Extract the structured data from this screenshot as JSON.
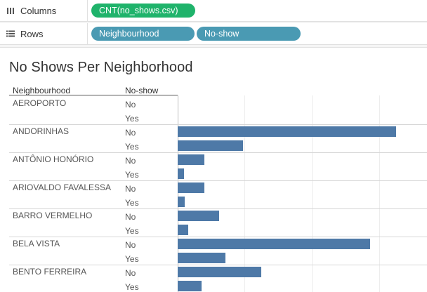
{
  "shelves": {
    "columns": {
      "label": "Columns",
      "icon": "columns-icon",
      "pills": [
        "CNT(no_shows.csv)"
      ]
    },
    "rows": {
      "label": "Rows",
      "icon": "rows-icon",
      "pills": [
        "Neighbourhood",
        "No-show"
      ]
    }
  },
  "colors": {
    "bar": "#4e79a7",
    "pill_measure": "#1fb36b",
    "pill_dimension": "#4a9ab3"
  },
  "sheet": {
    "title": "No Shows Per Neighborhood",
    "headers": {
      "neighbourhood": "Neighbourhood",
      "noshow": "No-show"
    }
  },
  "chart_data": {
    "type": "bar",
    "orientation": "horizontal",
    "title": "No Shows Per Neighborhood",
    "measure": "CNT(no_shows.csv)",
    "xlim": [
      0,
      3500
    ],
    "rows": [
      {
        "neighbourhood": "AEROPORTO",
        "groups": [
          {
            "noshow": "No",
            "value": 0
          },
          {
            "noshow": "Yes",
            "value": 0
          }
        ]
      },
      {
        "neighbourhood": "ANDORINHAS",
        "groups": [
          {
            "noshow": "No",
            "value": 3240
          },
          {
            "noshow": "Yes",
            "value": 970
          }
        ]
      },
      {
        "neighbourhood": "ANTÔNIO HONÓRIO",
        "groups": [
          {
            "noshow": "No",
            "value": 400
          },
          {
            "noshow": "Yes",
            "value": 90
          }
        ]
      },
      {
        "neighbourhood": "ARIOVALDO FAVALESSA",
        "groups": [
          {
            "noshow": "No",
            "value": 400
          },
          {
            "noshow": "Yes",
            "value": 100
          }
        ]
      },
      {
        "neighbourhood": "BARRO VERMELHO",
        "groups": [
          {
            "noshow": "No",
            "value": 610
          },
          {
            "noshow": "Yes",
            "value": 160
          }
        ]
      },
      {
        "neighbourhood": "BELA VISTA",
        "groups": [
          {
            "noshow": "No",
            "value": 2850
          },
          {
            "noshow": "Yes",
            "value": 710
          }
        ]
      },
      {
        "neighbourhood": "BENTO FERREIRA",
        "groups": [
          {
            "noshow": "No",
            "value": 1240
          },
          {
            "noshow": "Yes",
            "value": 350
          }
        ]
      }
    ]
  }
}
